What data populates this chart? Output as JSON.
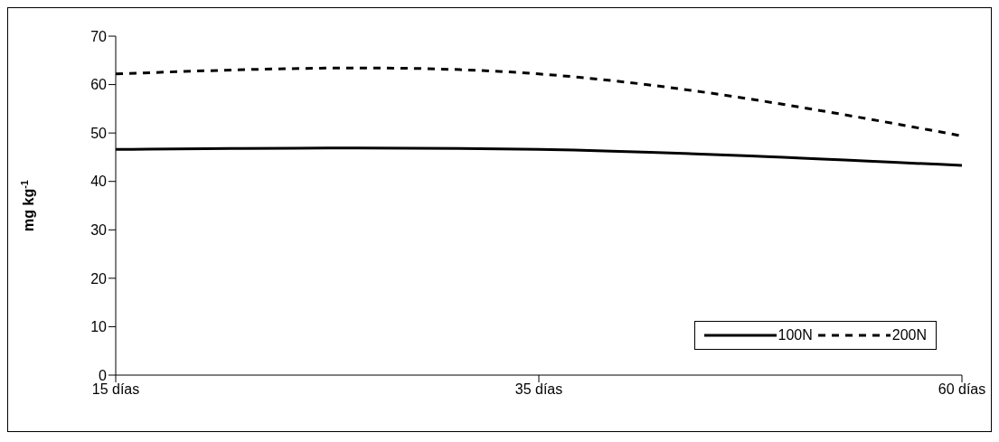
{
  "chart_data": {
    "type": "line",
    "ylabel": "mg kg$^{-1}$",
    "categories": [
      "15 días",
      "35 días",
      "60 días"
    ],
    "series": [
      {
        "name": "100N",
        "color": "#000000",
        "values": [
          46.6,
          46.6,
          43.3
        ],
        "line_style": "solid"
      },
      {
        "name": "200N",
        "color": "#000000",
        "values": [
          62.2,
          62.2,
          49.4
        ],
        "line_style": "dashed"
      }
    ],
    "ylim": [
      0,
      70
    ],
    "yticks": [
      0,
      10,
      20,
      30,
      40,
      50,
      60,
      70
    ],
    "legend": "bottom right",
    "marker": "none"
  }
}
